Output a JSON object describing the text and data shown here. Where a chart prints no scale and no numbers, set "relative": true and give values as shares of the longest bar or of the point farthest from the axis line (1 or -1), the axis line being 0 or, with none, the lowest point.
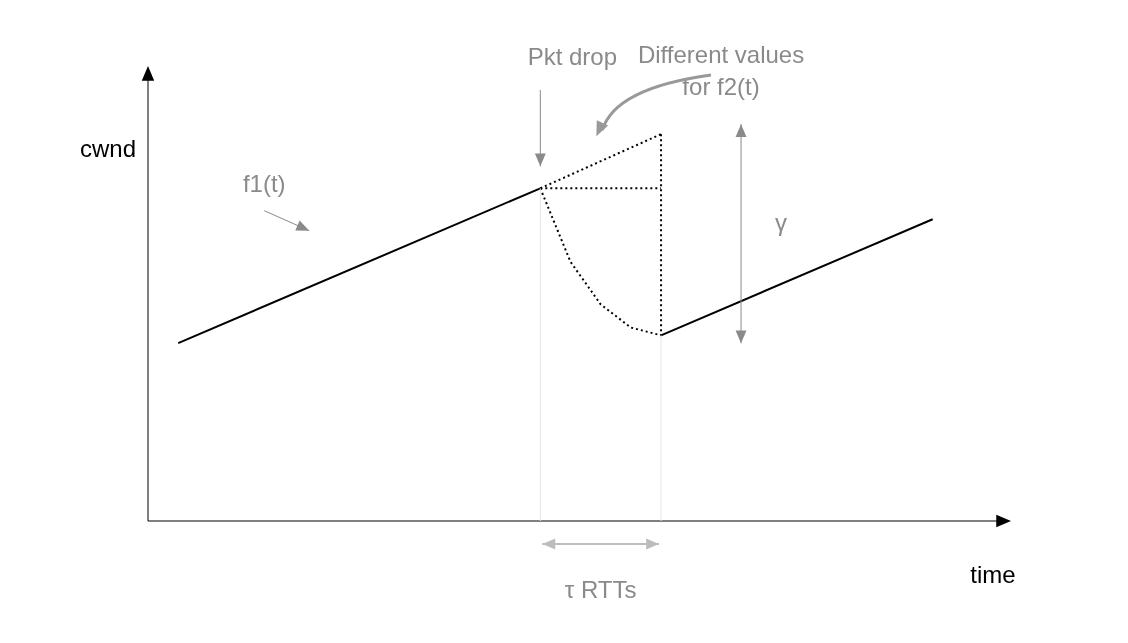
{
  "chart_data": {
    "type": "line",
    "relative": true,
    "xlabel": "time",
    "ylabel": "cwnd",
    "legend": false,
    "marker": "none",
    "categories": [
      null,
      null,
      null,
      null,
      null,
      null,
      null,
      null,
      null,
      null,
      null,
      null,
      null,
      null,
      null,
      null,
      null,
      null,
      null,
      null,
      null,
      null,
      null,
      null,
      null,
      null,
      null,
      null,
      null
    ],
    "series": [
      {
        "color": "#000000",
        "line_style": "solid",
        "values": [
          null,
          0.46,
          null,
          null,
          null,
          null,
          null,
          null,
          null,
          null,
          null,
          null,
          null,
          0.86,
          null,
          null,
          null,
          null,
          null,
          null,
          null,
          null,
          null,
          null,
          null,
          null,
          null,
          null,
          null
        ]
      },
      {
        "color": "#000000",
        "line_style": "dotted",
        "values": [
          null,
          null,
          null,
          null,
          null,
          null,
          null,
          null,
          null,
          null,
          null,
          null,
          null,
          0.86,
          null,
          null,
          null,
          1.0,
          null,
          null,
          null,
          null,
          null,
          null,
          null,
          null,
          null,
          null,
          null
        ]
      },
      {
        "color": "#000000",
        "line_style": "dotted",
        "values": [
          null,
          null,
          null,
          null,
          null,
          null,
          null,
          null,
          null,
          null,
          null,
          null,
          null,
          0.86,
          null,
          null,
          null,
          0.86,
          null,
          null,
          null,
          null,
          null,
          null,
          null,
          null,
          null,
          null,
          null
        ]
      },
      {
        "color": "#000000",
        "line_style": "dotted",
        "values": [
          null,
          null,
          null,
          null,
          null,
          null,
          null,
          null,
          null,
          null,
          null,
          null,
          null,
          0.86,
          0.67,
          0.56,
          0.5,
          0.48,
          null,
          null,
          null,
          null,
          null,
          null,
          null,
          null,
          null,
          null,
          null
        ]
      },
      {
        "color": "#000000",
        "line_style": "solid",
        "values": [
          null,
          null,
          null,
          null,
          null,
          null,
          null,
          null,
          null,
          null,
          null,
          null,
          null,
          null,
          null,
          null,
          null,
          0.48,
          null,
          null,
          null,
          null,
          null,
          null,
          null,
          null,
          0.78,
          null,
          null
        ]
      }
    ],
    "annotations": [
      "f1(t)",
      "Pkt drop",
      "Different values for f2(t)",
      "γ",
      "τ RTTs"
    ]
  }
}
